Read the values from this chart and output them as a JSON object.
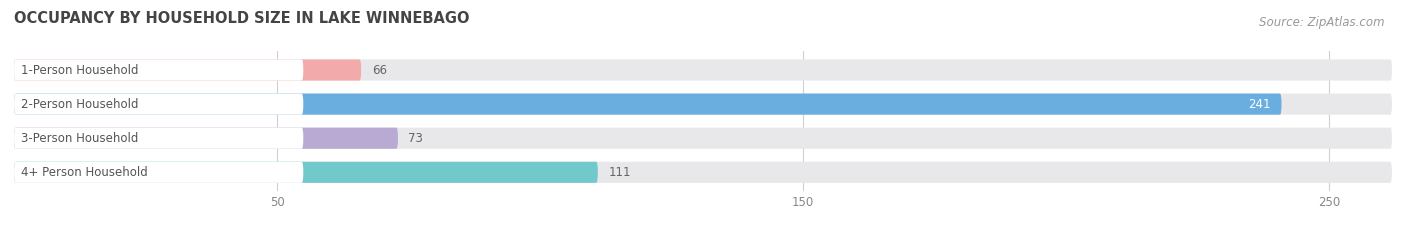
{
  "title": "OCCUPANCY BY HOUSEHOLD SIZE IN LAKE WINNEBAGO",
  "source": "Source: ZipAtlas.com",
  "categories": [
    "1-Person Household",
    "2-Person Household",
    "3-Person Household",
    "4+ Person Household"
  ],
  "values": [
    66,
    241,
    73,
    111
  ],
  "bar_colors": [
    "#f2aaaa",
    "#6aaee0",
    "#b9aad4",
    "#72c9cc"
  ],
  "xlim": [
    0,
    262
  ],
  "xticks": [
    50,
    150,
    250
  ],
  "bar_height": 0.62,
  "figsize": [
    14.06,
    2.33
  ],
  "dpi": 100,
  "title_fontsize": 10.5,
  "label_fontsize": 8.5,
  "value_fontsize": 8.5,
  "source_fontsize": 8.5,
  "bg_color": "#ffffff",
  "bar_bg_color": "#e8e8ea",
  "label_bg_color": "#ffffff",
  "grid_color": "#d0d0d0",
  "label_text_color": "#555555",
  "value_text_color_inside": "#ffffff",
  "value_text_color_outside": "#666666",
  "title_color": "#444444"
}
